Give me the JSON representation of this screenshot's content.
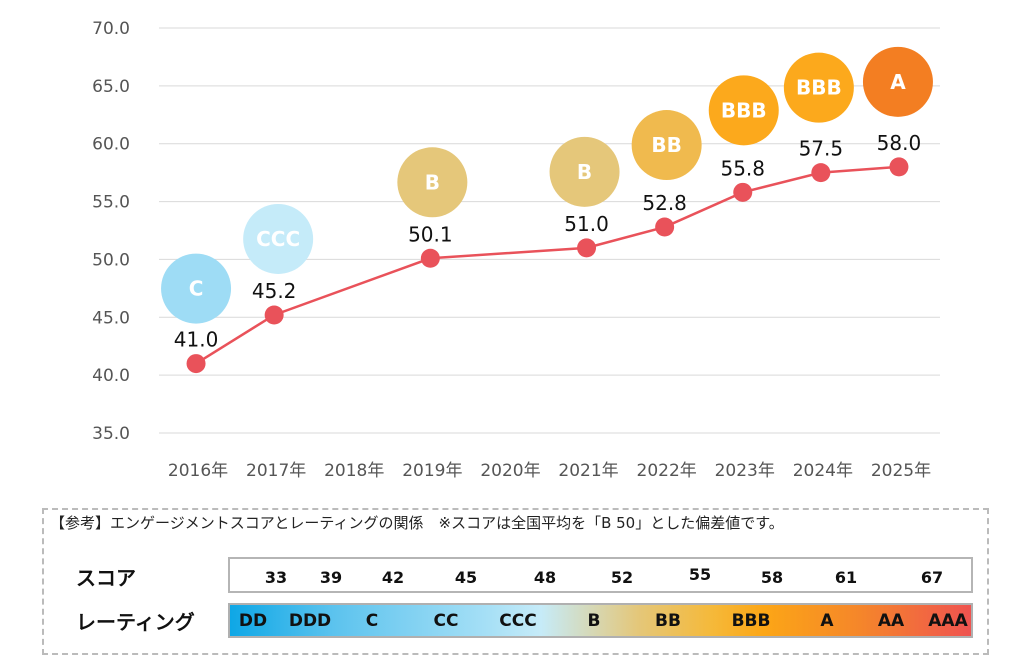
{
  "chart_data": {
    "type": "line",
    "title": "",
    "xlabel": "",
    "ylabel": "",
    "ylim": [
      35.0,
      70.0
    ],
    "yticks": [
      "70.0",
      "65.0",
      "60.0",
      "55.0",
      "50.0",
      "45.0",
      "40.0",
      "35.0"
    ],
    "ytick_values": [
      70,
      65,
      60,
      55,
      50,
      45,
      40,
      35
    ],
    "categories": [
      "2016年",
      "2017年",
      "2018年",
      "2019年",
      "2020年",
      "2021年",
      "2022年",
      "2023年",
      "2024年",
      "2025年"
    ],
    "grid": true,
    "series": [
      {
        "name": "エンゲージメントスコア",
        "color": "#e9525a",
        "values": [
          41.0,
          45.2,
          null,
          50.1,
          null,
          51.0,
          52.8,
          55.8,
          57.5,
          58.0
        ],
        "labels": [
          "41.0",
          "45.2",
          null,
          "50.1",
          null,
          "51.0",
          "52.8",
          "55.8",
          "57.5",
          "58.0"
        ]
      }
    ],
    "rating_bubbles": [
      {
        "category": "2016年",
        "rating": "C",
        "color": "#9edcf5"
      },
      {
        "category": "2017年",
        "rating": "CCC",
        "color": "#c5ebf9"
      },
      {
        "category": "2019年",
        "rating": "B",
        "color": "#e5c77a"
      },
      {
        "category": "2021年",
        "rating": "B",
        "color": "#e5c77a"
      },
      {
        "category": "2022年",
        "rating": "BB",
        "color": "#f0ba4e"
      },
      {
        "category": "2023年",
        "rating": "BBB",
        "color": "#fca91c"
      },
      {
        "category": "2024年",
        "rating": "BBB",
        "color": "#fca91c"
      },
      {
        "category": "2025年",
        "rating": "A",
        "color": "#f37e22"
      }
    ]
  },
  "legend": {
    "title": "【参考】エンゲージメントスコアとレーティングの関係　※スコアは全国平均を「B 50」とした偏差値です。",
    "score_label": "スコア",
    "rating_label": "レーティング",
    "scores": [
      "33",
      "39",
      "42",
      "45",
      "48",
      "52",
      "55",
      "58",
      "61",
      "67"
    ],
    "ratings": [
      "DD",
      "DDD",
      "C",
      "CC",
      "CCC",
      "B",
      "BB",
      "BBB",
      "A",
      "AA",
      "AAA"
    ]
  }
}
